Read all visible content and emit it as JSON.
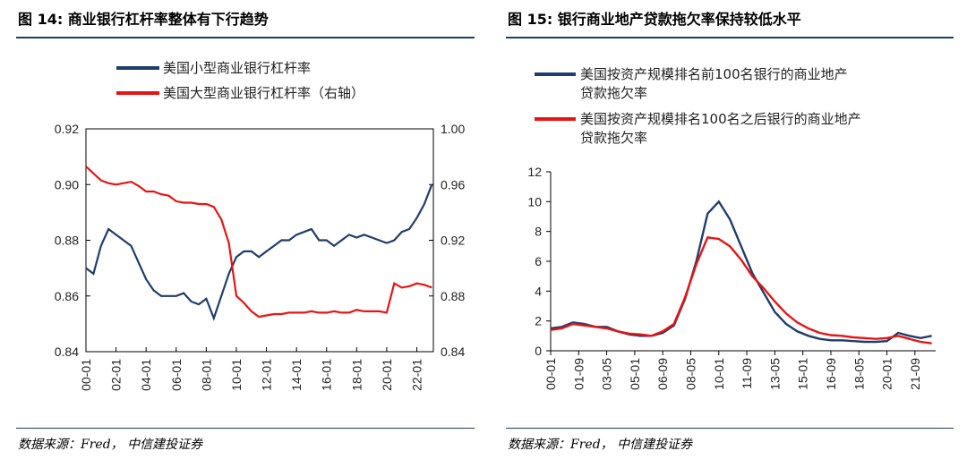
{
  "left": {
    "title": "图 14:  商业银行杠杆率整体有下行趋势",
    "source": "数据来源：Fred，  中信建投证券",
    "chart_data": {
      "type": "line",
      "title": "",
      "legend_placement": "top",
      "x_tick_labels": [
        "00-01",
        "02-01",
        "04-01",
        "06-01",
        "08-01",
        "10-01",
        "12-01",
        "14-01",
        "16-01",
        "18-01",
        "20-01",
        "22-01"
      ],
      "y_left": {
        "lim": [
          0.84,
          0.92
        ],
        "ticks": [
          "0.84",
          "0.86",
          "0.88",
          "0.90",
          "0.92"
        ]
      },
      "y_right": {
        "lim": [
          0.84,
          1.0
        ],
        "ticks": [
          "0.84",
          "0.88",
          "0.92",
          "0.96",
          "1.00"
        ]
      },
      "series": [
        {
          "name": "美国小型商业银行杠杆率",
          "axis": "left",
          "color": "#1f3d6b",
          "x": [
            "00-01",
            "00-07",
            "01-01",
            "01-07",
            "02-01",
            "02-07",
            "03-01",
            "03-07",
            "04-01",
            "04-07",
            "05-01",
            "05-07",
            "06-01",
            "06-07",
            "07-01",
            "07-07",
            "08-01",
            "08-07",
            "09-01",
            "09-07",
            "10-01",
            "10-07",
            "11-01",
            "11-07",
            "12-01",
            "12-07",
            "13-01",
            "13-07",
            "14-01",
            "14-07",
            "15-01",
            "15-07",
            "16-01",
            "16-07",
            "17-01",
            "17-07",
            "18-01",
            "18-07",
            "19-01",
            "19-07",
            "20-01",
            "20-07",
            "21-01",
            "21-07",
            "22-01",
            "22-07",
            "23-01"
          ],
          "y": [
            0.87,
            0.868,
            0.878,
            0.884,
            0.882,
            0.88,
            0.878,
            0.872,
            0.866,
            0.862,
            0.86,
            0.86,
            0.86,
            0.861,
            0.858,
            0.857,
            0.859,
            0.852,
            0.86,
            0.868,
            0.874,
            0.876,
            0.876,
            0.874,
            0.876,
            0.878,
            0.88,
            0.88,
            0.882,
            0.883,
            0.884,
            0.88,
            0.88,
            0.878,
            0.88,
            0.882,
            0.881,
            0.882,
            0.881,
            0.88,
            0.879,
            0.88,
            0.883,
            0.884,
            0.888,
            0.893,
            0.9
          ]
        },
        {
          "name": "美国大型商业银行杠杆率（右轴）",
          "axis": "right",
          "color": "#e81414",
          "x": [
            "00-01",
            "00-07",
            "01-01",
            "01-07",
            "02-01",
            "02-07",
            "03-01",
            "03-07",
            "04-01",
            "04-07",
            "05-01",
            "05-07",
            "06-01",
            "06-07",
            "07-01",
            "07-07",
            "08-01",
            "08-07",
            "09-01",
            "09-07",
            "10-01",
            "10-07",
            "11-01",
            "11-07",
            "12-01",
            "12-07",
            "13-01",
            "13-07",
            "14-01",
            "14-07",
            "15-01",
            "15-07",
            "16-01",
            "16-07",
            "17-01",
            "17-07",
            "18-01",
            "18-07",
            "19-01",
            "19-07",
            "20-01",
            "20-07",
            "21-01",
            "21-07",
            "22-01",
            "22-07",
            "23-01"
          ],
          "y": [
            0.973,
            0.968,
            0.963,
            0.961,
            0.96,
            0.961,
            0.962,
            0.959,
            0.955,
            0.955,
            0.953,
            0.952,
            0.948,
            0.947,
            0.947,
            0.946,
            0.946,
            0.944,
            0.935,
            0.918,
            0.88,
            0.875,
            0.869,
            0.865,
            0.866,
            0.867,
            0.867,
            0.868,
            0.868,
            0.868,
            0.869,
            0.868,
            0.868,
            0.869,
            0.868,
            0.868,
            0.87,
            0.869,
            0.869,
            0.869,
            0.868,
            0.889,
            0.886,
            0.887,
            0.889,
            0.888,
            0.886
          ]
        }
      ]
    }
  },
  "right": {
    "title": "图 15:  银行商业地产贷款拖欠率保持较低水平",
    "source": "数据来源：Fred，  中信建投证券",
    "chart_data": {
      "type": "line",
      "title": "",
      "legend_placement": "top",
      "x_tick_labels": [
        "00-01",
        "01-09",
        "03-05",
        "05-01",
        "06-09",
        "08-05",
        "10-01",
        "11-09",
        "13-05",
        "15-01",
        "16-09",
        "18-05",
        "20-01",
        "21-09"
      ],
      "y": {
        "lim": [
          0,
          12
        ],
        "ticks": [
          "0",
          "2",
          "4",
          "6",
          "8",
          "10",
          "12"
        ]
      },
      "series": [
        {
          "name": "美国按资产规模排名前100名银行的商业地产贷款拖欠率",
          "color": "#1f3d6b",
          "x": [
            "00-01",
            "00-09",
            "01-05",
            "02-01",
            "02-09",
            "03-05",
            "04-01",
            "04-09",
            "05-05",
            "06-01",
            "06-09",
            "07-05",
            "08-01",
            "08-09",
            "09-05",
            "10-01",
            "10-09",
            "11-05",
            "12-01",
            "12-09",
            "13-05",
            "14-01",
            "14-09",
            "15-05",
            "16-01",
            "16-09",
            "17-05",
            "18-01",
            "18-09",
            "19-05",
            "20-01",
            "20-09",
            "21-05",
            "22-01",
            "22-09"
          ],
          "y": [
            1.5,
            1.6,
            1.9,
            1.8,
            1.6,
            1.6,
            1.3,
            1.1,
            1.0,
            1.0,
            1.2,
            1.7,
            3.5,
            6.0,
            9.2,
            10.0,
            8.8,
            7.0,
            5.2,
            3.9,
            2.6,
            1.8,
            1.3,
            1.0,
            0.8,
            0.7,
            0.7,
            0.65,
            0.6,
            0.6,
            0.65,
            1.2,
            1.0,
            0.85,
            1.0
          ]
        },
        {
          "name": "美国按资产规模排名100名之后银行的商业地产贷款拖欠率",
          "color": "#e81414",
          "x": [
            "00-01",
            "00-09",
            "01-05",
            "02-01",
            "02-09",
            "03-05",
            "04-01",
            "04-09",
            "05-05",
            "06-01",
            "06-09",
            "07-05",
            "08-01",
            "08-09",
            "09-05",
            "10-01",
            "10-09",
            "11-05",
            "12-01",
            "12-09",
            "13-05",
            "14-01",
            "14-09",
            "15-05",
            "16-01",
            "16-09",
            "17-05",
            "18-01",
            "18-09",
            "19-05",
            "20-01",
            "20-09",
            "21-05",
            "22-01",
            "22-09"
          ],
          "y": [
            1.4,
            1.5,
            1.8,
            1.7,
            1.6,
            1.5,
            1.3,
            1.15,
            1.1,
            1.0,
            1.3,
            1.8,
            3.6,
            5.8,
            7.6,
            7.5,
            7.0,
            6.1,
            5.0,
            4.2,
            3.3,
            2.5,
            1.9,
            1.5,
            1.2,
            1.05,
            1.0,
            0.9,
            0.85,
            0.8,
            0.85,
            1.0,
            0.8,
            0.6,
            0.5
          ]
        }
      ]
    }
  }
}
